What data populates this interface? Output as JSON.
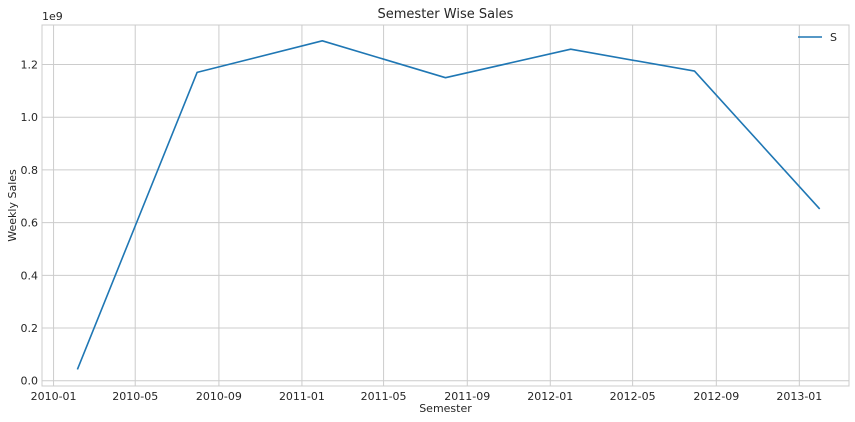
{
  "chart_data": {
    "type": "line",
    "title": "Semester Wise Sales",
    "xlabel": "Semester",
    "ylabel": "Weekly Sales",
    "y_offset_label": "1e9",
    "x_tick_labels": [
      "2010-01",
      "2010-05",
      "2010-09",
      "2011-01",
      "2011-05",
      "2011-09",
      "2012-01",
      "2012-05",
      "2012-09",
      "2013-01"
    ],
    "y_tick_labels": [
      "0.0",
      "0.2",
      "0.4",
      "0.6",
      "0.8",
      "1.0",
      "1.2"
    ],
    "xlim": [
      "2009-12-15",
      "2013-03-15"
    ],
    "ylim": [
      -0.02,
      1.35
    ],
    "y_scale": 1000000000,
    "grid": true,
    "legend": "top-right",
    "series": [
      {
        "name": "S",
        "color": "#1f77b4",
        "x": [
          "2010-02-05",
          "2010-07-31",
          "2011-01-31",
          "2011-07-31",
          "2012-01-31",
          "2012-07-31",
          "2013-01-31"
        ],
        "y": [
          0.043,
          1.17,
          1.29,
          1.15,
          1.258,
          1.175,
          0.652
        ]
      }
    ]
  }
}
